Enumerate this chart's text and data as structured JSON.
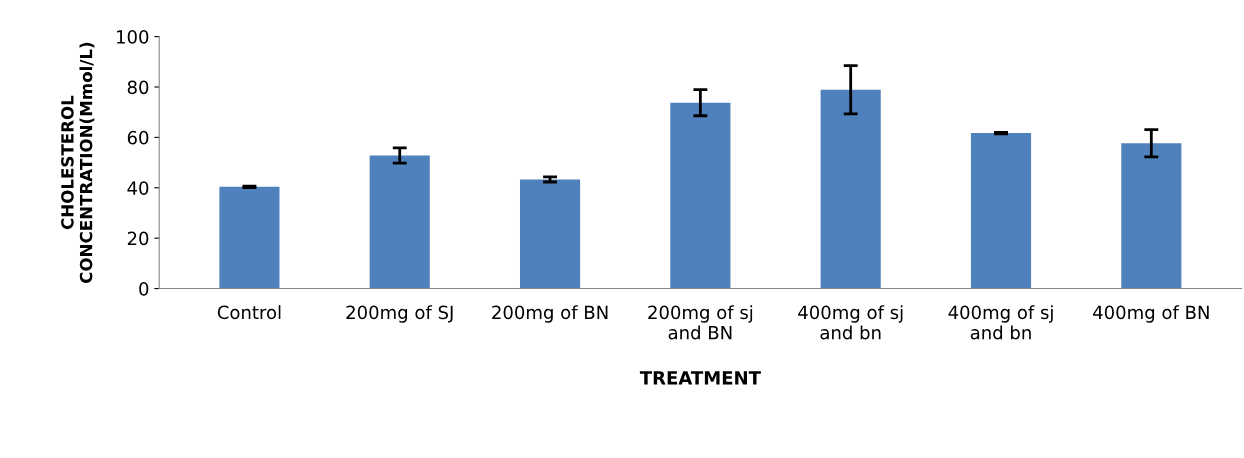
{
  "chart_data": {
    "type": "bar",
    "xlabel": "TREATMENT",
    "ylabel": "CHOLESTEROL\nCONCENTRATION(Mmol/L)",
    "categories": [
      "Control",
      "200mg of SJ",
      "200mg of BN",
      "200mg of sj\nand BN",
      "400mg of sj\nand bn",
      "400mg of sj\nand bn",
      "400mg of BN"
    ],
    "values": [
      40.4,
      52.8,
      43.3,
      73.8,
      78.9,
      61.7,
      57.7
    ],
    "errors": [
      0.3,
      3.0,
      1.0,
      5.2,
      9.6,
      0.3,
      5.4
    ],
    "color": "#4f81bd",
    "ylim": [
      0,
      100
    ],
    "yticks": [
      0,
      20,
      40,
      60,
      80,
      100
    ],
    "grid": false
  }
}
